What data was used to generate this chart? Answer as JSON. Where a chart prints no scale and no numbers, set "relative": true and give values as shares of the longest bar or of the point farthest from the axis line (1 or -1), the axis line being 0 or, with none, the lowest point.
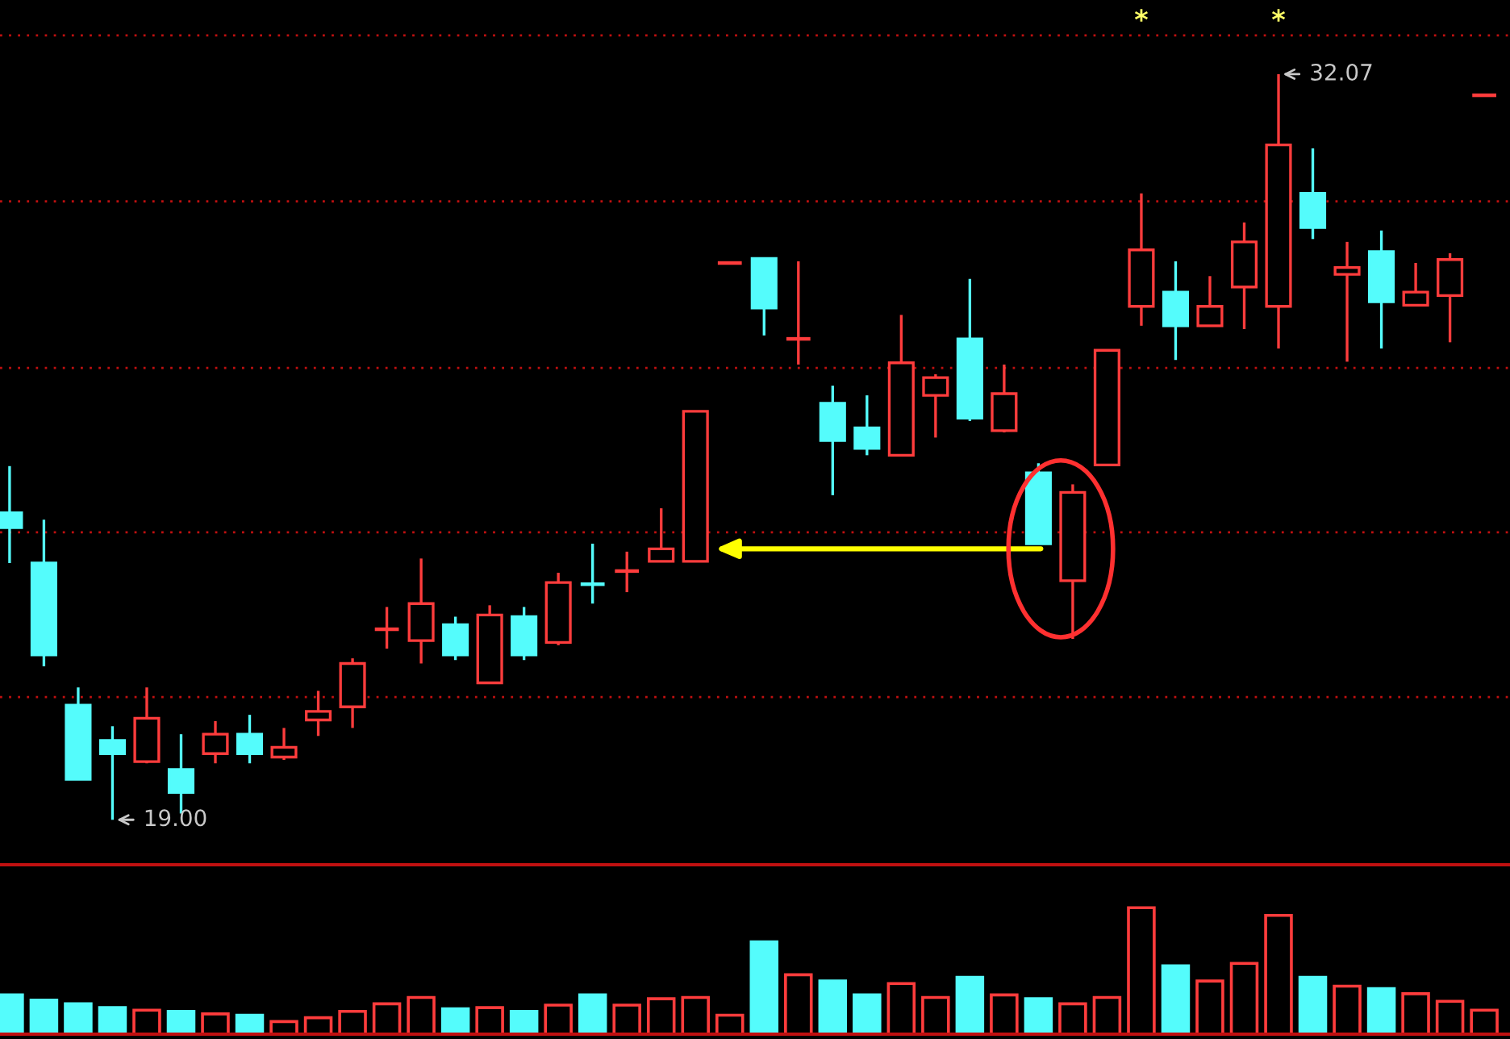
{
  "chart_data": [
    {
      "type": "candlestick",
      "categories": [
        null,
        null,
        null,
        null,
        null,
        null,
        null,
        null,
        null,
        null,
        null,
        null,
        null,
        null,
        null,
        null,
        null,
        null,
        null,
        null,
        null,
        null,
        null,
        null,
        null,
        null,
        null,
        null,
        null,
        null,
        null,
        null,
        null,
        null,
        null,
        null,
        null,
        null,
        null,
        null,
        null,
        null,
        null,
        null
      ],
      "ohlc": [
        [
          24.38,
          25.2,
          23.5,
          24.12
        ],
        [
          23.5,
          24.26,
          21.69,
          21.89
        ],
        [
          21.01,
          21.32,
          19.71,
          19.71
        ],
        [
          20.39,
          20.64,
          19.0,
          20.16
        ],
        [
          20.02,
          21.32,
          19.99,
          20.78
        ],
        [
          19.88,
          20.5,
          19.11,
          19.48
        ],
        [
          20.16,
          20.73,
          19.99,
          20.5
        ],
        [
          20.5,
          20.84,
          19.99,
          20.16
        ],
        [
          20.1,
          20.61,
          20.05,
          20.27
        ],
        [
          20.75,
          21.26,
          20.47,
          20.9
        ],
        [
          20.98,
          21.83,
          20.61,
          21.74
        ],
        [
          22.34,
          22.73,
          22.0,
          22.34
        ],
        [
          22.14,
          23.58,
          21.74,
          22.79
        ],
        [
          22.42,
          22.56,
          21.8,
          21.89
        ],
        [
          21.4,
          22.76,
          21.38,
          22.59
        ],
        [
          22.56,
          22.73,
          21.8,
          21.89
        ],
        [
          22.11,
          23.33,
          22.06,
          23.16
        ],
        [
          23.13,
          23.84,
          22.79,
          23.13
        ],
        [
          23.36,
          23.7,
          22.99,
          23.36
        ],
        [
          23.53,
          24.46,
          23.53,
          23.75
        ],
        [
          23.53,
          26.16,
          23.53,
          26.16
        ],
        [
          28.76,
          28.76,
          28.76,
          28.76
        ],
        [
          28.84,
          28.84,
          27.49,
          27.97
        ],
        [
          27.43,
          28.79,
          26.98,
          27.43
        ],
        [
          26.3,
          26.61,
          24.69,
          25.65
        ],
        [
          25.87,
          26.44,
          25.39,
          25.51
        ],
        [
          25.39,
          27.85,
          25.39,
          27.01
        ],
        [
          26.44,
          26.81,
          25.7,
          26.75
        ],
        [
          27.43,
          28.48,
          25.99,
          26.04
        ],
        [
          25.82,
          26.98,
          25.79,
          26.47
        ],
        [
          25.08,
          25.25,
          23.84,
          23.84
        ],
        [
          23.19,
          24.88,
          22.17,
          24.74
        ],
        [
          25.22,
          27.23,
          25.22,
          27.23
        ],
        [
          28.0,
          29.98,
          27.66,
          28.99
        ],
        [
          28.25,
          28.79,
          27.06,
          27.66
        ],
        [
          27.66,
          28.53,
          27.66,
          28.0
        ],
        [
          28.34,
          29.47,
          27.6,
          29.13
        ],
        [
          28.0,
          32.07,
          27.26,
          30.83
        ],
        [
          29.98,
          30.77,
          29.18,
          29.38
        ],
        [
          28.56,
          29.13,
          27.03,
          28.68
        ],
        [
          28.96,
          29.33,
          27.26,
          28.08
        ],
        [
          28.02,
          28.76,
          28.02,
          28.25
        ],
        [
          28.19,
          28.93,
          27.37,
          28.82
        ],
        [
          31.7,
          31.7,
          31.7,
          31.7
        ]
      ],
      "colors": [
        "#54fcfc",
        "#54fcfc",
        "#54fcfc",
        "#54fcfc",
        "#ff3c3c",
        "#54fcfc",
        "#ff3c3c",
        "#54fcfc",
        "#ff3c3c",
        "#ff3c3c",
        "#ff3c3c",
        "#ff3c3c",
        "#ff3c3c",
        "#54fcfc",
        "#ff3c3c",
        "#54fcfc",
        "#ff3c3c",
        "#54fcfc",
        "#ff3c3c",
        "#ff3c3c",
        "#ff3c3c",
        "#ff3c3c",
        "#54fcfc",
        "#ff3c3c",
        "#54fcfc",
        "#54fcfc",
        "#ff3c3c",
        "#ff3c3c",
        "#54fcfc",
        "#ff3c3c",
        "#54fcfc",
        "#ff3c3c",
        "#ff3c3c",
        "#ff3c3c",
        "#54fcfc",
        "#ff3c3c",
        "#ff3c3c",
        "#ff3c3c",
        "#54fcfc",
        "#ff3c3c",
        "#54fcfc",
        "#ff3c3c",
        "#ff3c3c",
        "#ff3c3c"
      ],
      "value_labels": [
        null,
        null,
        null,
        null,
        null,
        null,
        null,
        null,
        null,
        null,
        null,
        null,
        null,
        null,
        null,
        null,
        null,
        null,
        null,
        null,
        null,
        null,
        null,
        null,
        null,
        null,
        null,
        null,
        null,
        null,
        null,
        null,
        null,
        "*",
        null,
        null,
        null,
        "*",
        null,
        null,
        null,
        null,
        null,
        null
      ],
      "annotations": [
        "19.00",
        "32.07"
      ],
      "ylim": [
        18.24,
        33.37
      ],
      "yticks": [
        {
          "value": 21.15,
          "label": null
        },
        {
          "value": 24.04,
          "label": null
        },
        {
          "value": 26.92,
          "label": null
        },
        {
          "value": 29.84,
          "label": null
        },
        {
          "value": 32.75,
          "label": null
        }
      ],
      "grid": "y"
    },
    {
      "type": "bar",
      "categories": [
        null,
        null,
        null,
        null,
        null,
        null,
        null,
        null,
        null,
        null,
        null,
        null,
        null,
        null,
        null,
        null,
        null,
        null,
        null,
        null,
        null,
        null,
        null,
        null,
        null,
        null,
        null,
        null,
        null,
        null,
        null,
        null,
        null,
        null,
        null,
        null,
        null,
        null,
        null,
        null,
        null,
        null,
        null,
        null
      ],
      "values": [
        0.31,
        0.27,
        0.24,
        0.21,
        0.19,
        0.18,
        0.16,
        0.15,
        0.1,
        0.13,
        0.18,
        0.24,
        0.29,
        0.2,
        0.21,
        0.18,
        0.23,
        0.31,
        0.23,
        0.28,
        0.29,
        0.15,
        0.73,
        0.47,
        0.42,
        0.31,
        0.4,
        0.29,
        0.45,
        0.31,
        0.28,
        0.24,
        0.29,
        1,
        0.54,
        0.42,
        0.56,
        0.94,
        0.45,
        0.38,
        0.36,
        0.32,
        0.26,
        0.19
      ],
      "colors": [
        "#54fcfc",
        "#54fcfc",
        "#54fcfc",
        "#54fcfc",
        "#ff3c3c",
        "#54fcfc",
        "#ff3c3c",
        "#54fcfc",
        "#ff3c3c",
        "#ff3c3c",
        "#ff3c3c",
        "#ff3c3c",
        "#ff3c3c",
        "#54fcfc",
        "#ff3c3c",
        "#54fcfc",
        "#ff3c3c",
        "#54fcfc",
        "#ff3c3c",
        "#ff3c3c",
        "#ff3c3c",
        "#ff3c3c",
        "#54fcfc",
        "#ff3c3c",
        "#54fcfc",
        "#54fcfc",
        "#ff3c3c",
        "#ff3c3c",
        "#54fcfc",
        "#ff3c3c",
        "#54fcfc",
        "#ff3c3c",
        "#ff3c3c",
        "#ff3c3c",
        "#54fcfc",
        "#ff3c3c",
        "#ff3c3c",
        "#ff3c3c",
        "#54fcfc",
        "#ff3c3c",
        "#54fcfc",
        "#ff3c3c",
        "#ff3c3c",
        "#ff3c3c"
      ],
      "relative": true
    }
  ]
}
